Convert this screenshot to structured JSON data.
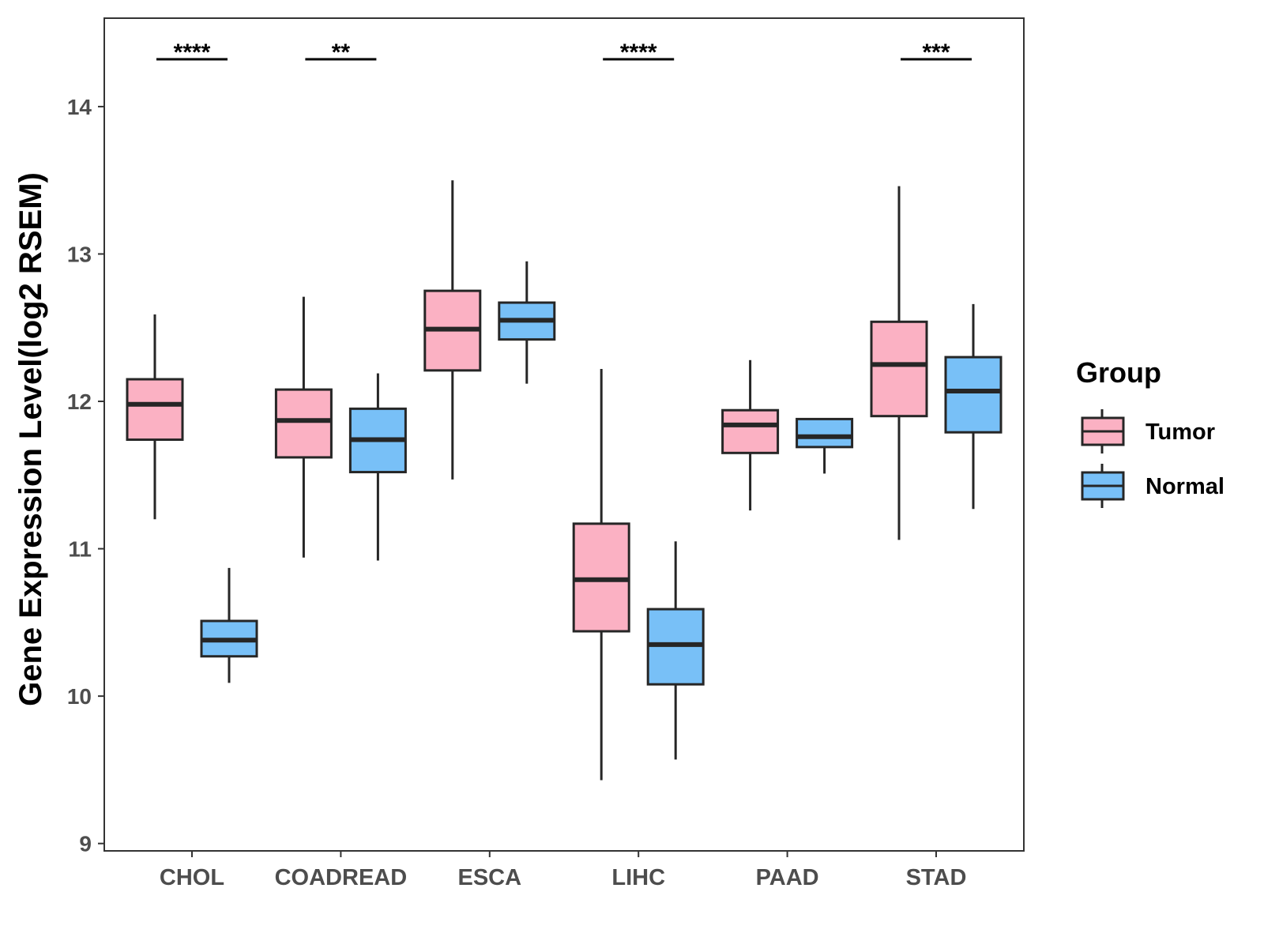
{
  "chart_data": {
    "type": "boxplot",
    "title": "",
    "xlabel": "",
    "ylabel": "Gene Expression Level(log2 RSEM)",
    "ylim": [
      8.95,
      14.6
    ],
    "yticks": [
      9,
      10,
      11,
      12,
      13,
      14
    ],
    "grid": false,
    "categories": [
      "CHOL",
      "COADREAD",
      "ESCA",
      "LIHC",
      "PAAD",
      "STAD"
    ],
    "series": [
      {
        "name": "Tumor",
        "color": "#fbb1c3",
        "boxes": [
          {
            "category": "CHOL",
            "min": 11.2,
            "q1": 11.74,
            "median": 11.98,
            "q3": 12.15,
            "max": 12.59
          },
          {
            "category": "COADREAD",
            "min": 10.94,
            "q1": 11.62,
            "median": 11.87,
            "q3": 12.08,
            "max": 12.71
          },
          {
            "category": "ESCA",
            "min": 11.47,
            "q1": 12.21,
            "median": 12.49,
            "q3": 12.75,
            "max": 13.5
          },
          {
            "category": "LIHC",
            "min": 9.43,
            "q1": 10.44,
            "median": 10.79,
            "q3": 11.17,
            "max": 12.22
          },
          {
            "category": "PAAD",
            "min": 11.26,
            "q1": 11.65,
            "median": 11.84,
            "q3": 11.94,
            "max": 12.28
          },
          {
            "category": "STAD",
            "min": 11.06,
            "q1": 11.9,
            "median": 12.25,
            "q3": 12.54,
            "max": 13.46
          }
        ]
      },
      {
        "name": "Normal",
        "color": "#78c0f7",
        "boxes": [
          {
            "category": "CHOL",
            "min": 10.09,
            "q1": 10.27,
            "median": 10.38,
            "q3": 10.51,
            "max": 10.87
          },
          {
            "category": "COADREAD",
            "min": 10.92,
            "q1": 11.52,
            "median": 11.74,
            "q3": 11.95,
            "max": 12.19
          },
          {
            "category": "ESCA",
            "min": 12.12,
            "q1": 12.42,
            "median": 12.55,
            "q3": 12.67,
            "max": 12.95
          },
          {
            "category": "LIHC",
            "min": 9.57,
            "q1": 10.08,
            "median": 10.35,
            "q3": 10.59,
            "max": 11.05
          },
          {
            "category": "PAAD",
            "min": 11.51,
            "q1": 11.69,
            "median": 11.76,
            "q3": 11.88,
            "max": 11.88
          },
          {
            "category": "STAD",
            "min": 11.27,
            "q1": 11.79,
            "median": 12.07,
            "q3": 12.3,
            "max": 12.66
          }
        ]
      }
    ],
    "significance": [
      {
        "category": "CHOL",
        "label": "****"
      },
      {
        "category": "COADREAD",
        "label": "**"
      },
      {
        "category": "LIHC",
        "label": "****"
      },
      {
        "category": "STAD",
        "label": "***"
      }
    ],
    "legend": {
      "title": "Group",
      "position": "right",
      "items": [
        "Tumor",
        "Normal"
      ]
    }
  }
}
